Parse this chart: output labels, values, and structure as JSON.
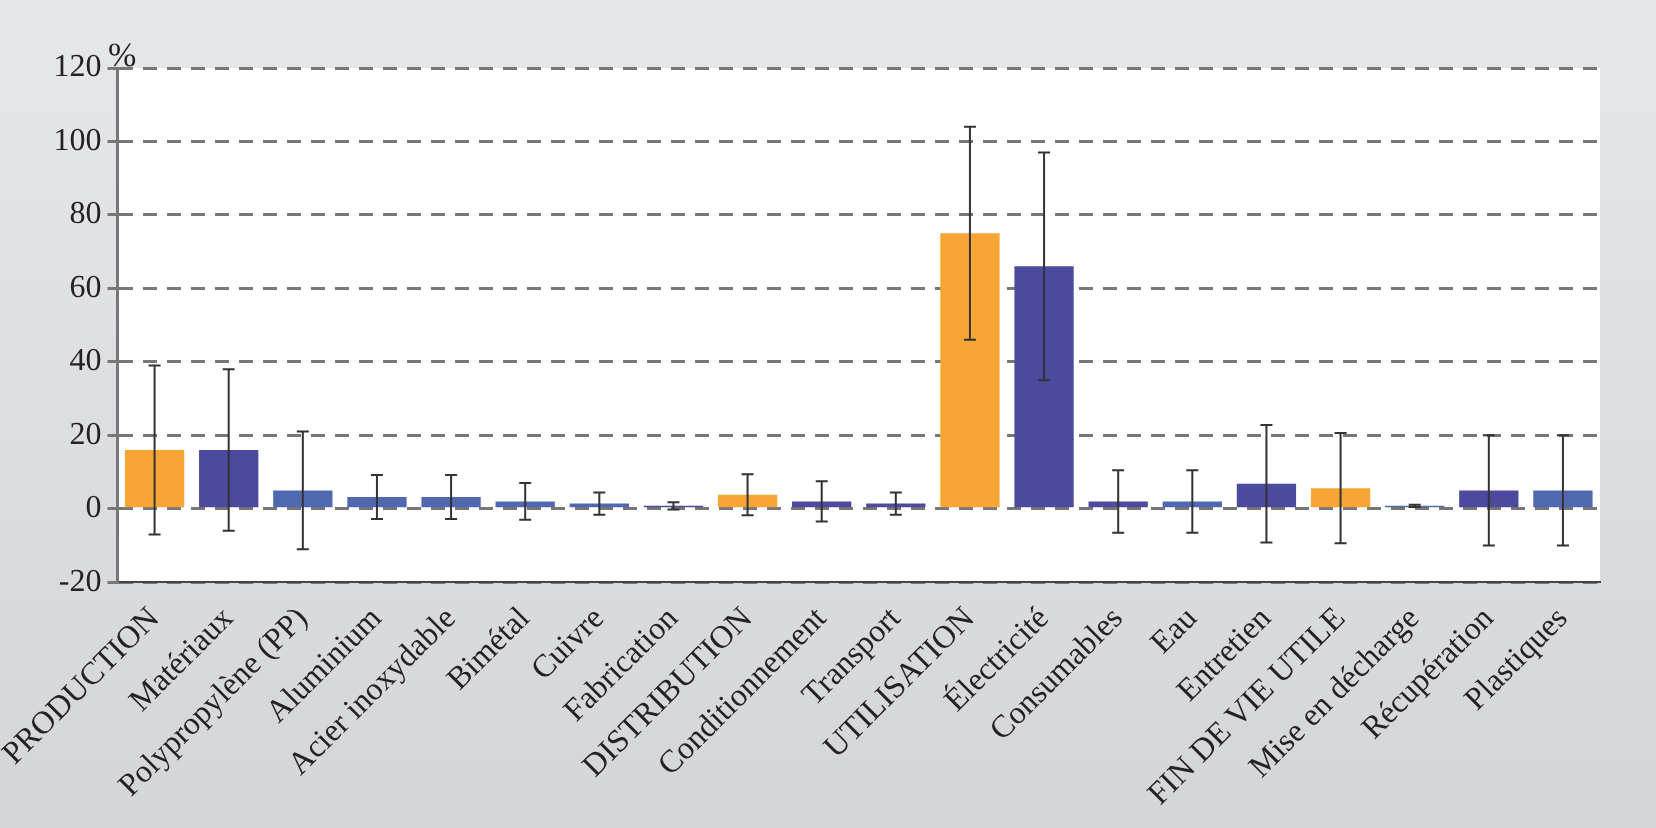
{
  "chart_data": {
    "type": "bar",
    "ylabel": "%",
    "categories": [
      "PRODUCTION",
      "Matériaux",
      "Polypropylène (PP)",
      "Aluminium",
      "Acier inoxydable",
      "Bimétal",
      "Cuivre",
      "Fabrication",
      "DISTRIBUTION",
      "Conditionnement",
      "Transport",
      "UTILISATION",
      "Électricité",
      "Consumables",
      "Eau",
      "Entretien",
      "FIN DE VIE UTILE",
      "Mise en décharge",
      "Récupération",
      "Plastiques"
    ],
    "values": [
      16,
      16,
      5,
      3.2,
      3.2,
      2,
      1.4,
      0.8,
      3.8,
      2,
      1.4,
      75,
      66,
      2,
      2,
      6.8,
      5.6,
      0.8,
      5,
      5
    ],
    "colors": [
      "#f7a535",
      "#4b4a9e",
      "#5068b0",
      "#5068b0",
      "#5068b0",
      "#5068b0",
      "#5068b0",
      "#4b4a9e",
      "#f7a535",
      "#4b4a9e",
      "#4b4a9e",
      "#f7a535",
      "#4b4a9e",
      "#4b4a9e",
      "#5068b0",
      "#4b4a9e",
      "#f7a535",
      "#5068b0",
      "#4b4a9e",
      "#5068b0"
    ],
    "errors": [
      23,
      22,
      16,
      6,
      6,
      5,
      3,
      1,
      5.6,
      5.5,
      3,
      29,
      31,
      8.5,
      8.5,
      16,
      15,
      0.3,
      15,
      15
    ],
    "ylim": [
      -20,
      120
    ],
    "yticks": [
      -20,
      0,
      20,
      40,
      60,
      80,
      100,
      120
    ],
    "grid": "y",
    "legend": false
  }
}
